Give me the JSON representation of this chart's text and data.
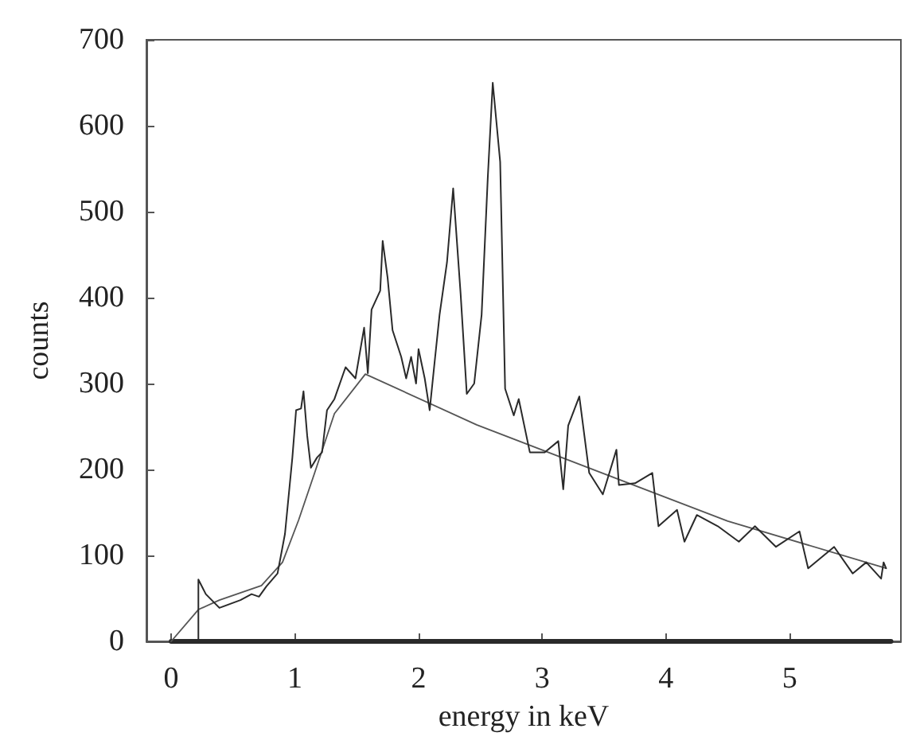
{
  "chart_data": {
    "type": "line",
    "xlabel": "energy in keV",
    "ylabel": "counts",
    "xlim": [
      -0.2,
      5.9
    ],
    "ylim": [
      0,
      700
    ],
    "xticks": [
      0,
      1,
      2,
      3,
      4,
      5
    ],
    "yticks": [
      0,
      100,
      200,
      300,
      400,
      500,
      600,
      700
    ],
    "grid": false,
    "marker": "none",
    "line_style": "solid",
    "series": [
      {
        "color": "#2a2a2a",
        "x": [
          0.22,
          0.22,
          0.28,
          0.39,
          0.56,
          0.65,
          0.71,
          0.77,
          0.86,
          0.92,
          0.98,
          1.01,
          1.05,
          1.07,
          1.1,
          1.13,
          1.18,
          1.22,
          1.26,
          1.32,
          1.41,
          1.49,
          1.56,
          1.59,
          1.62,
          1.69,
          1.71,
          1.75,
          1.79,
          1.86,
          1.9,
          1.94,
          1.98,
          2.0,
          2.05,
          2.09,
          2.13,
          2.17,
          2.23,
          2.28,
          2.34,
          2.39,
          2.45,
          2.51,
          2.56,
          2.6,
          2.66,
          2.7,
          2.77,
          2.81,
          2.9,
          3.02,
          3.13,
          3.17,
          3.21,
          3.3,
          3.38,
          3.49,
          3.6,
          3.62,
          3.75,
          3.89,
          3.94,
          4.09,
          4.15,
          4.25,
          4.42,
          4.59,
          4.72,
          4.89,
          5.08,
          5.15,
          5.36,
          5.51,
          5.62,
          5.74,
          5.76,
          5.78
        ],
        "values": [
          0,
          72,
          55,
          39,
          48,
          55,
          52,
          64,
          79,
          125,
          214,
          269,
          271,
          291,
          239,
          202,
          214,
          220,
          269,
          282,
          319,
          306,
          365,
          312,
          386,
          408,
          466,
          423,
          362,
          331,
          306,
          331,
          300,
          340,
          306,
          269,
          325,
          380,
          441,
          527,
          405,
          288,
          300,
          380,
          540,
          650,
          558,
          294,
          263,
          282,
          220,
          220,
          233,
          177,
          251,
          285,
          196,
          171,
          223,
          182,
          184,
          196,
          134,
          153,
          116,
          147,
          134,
          116,
          134,
          110,
          128,
          85,
          110,
          79,
          92,
          73,
          92,
          85
        ]
      },
      {
        "color": "#555555",
        "x": [
          0,
          0.22,
          0.39,
          0.73,
          0.9,
          1.03,
          1.16,
          1.32,
          1.57,
          2.47,
          3.5,
          4.5,
          5.78
        ],
        "values": [
          0,
          37,
          48,
          65,
          92,
          141,
          196,
          265,
          311,
          252,
          195,
          140,
          85
        ]
      },
      {
        "color": "#2a2a2a",
        "x": [
          0,
          5.82
        ],
        "values": [
          0,
          0
        ]
      }
    ]
  }
}
